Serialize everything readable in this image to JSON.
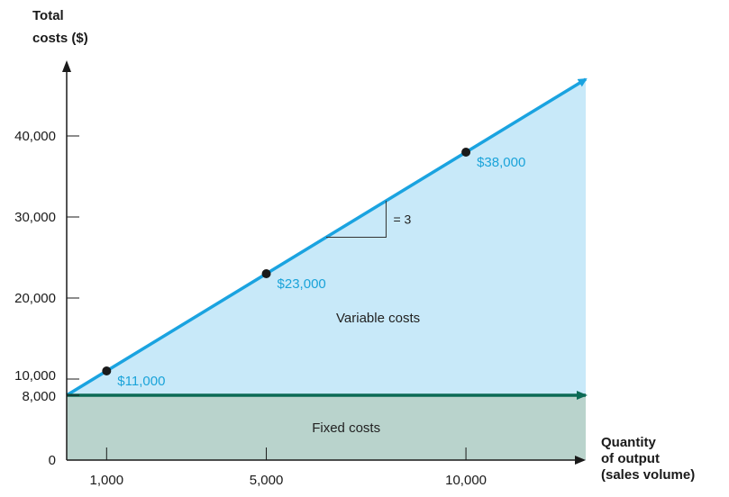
{
  "chart_data": {
    "type": "line",
    "ylabel_lines": [
      "Total",
      "costs ($)"
    ],
    "xlabel_lines": [
      "Quantity",
      "of output",
      "(sales volume)"
    ],
    "y_ticks": [
      {
        "value": 0,
        "label": "0"
      },
      {
        "value": 8000,
        "label": "8,000"
      },
      {
        "value": 10000,
        "label": "10,000"
      },
      {
        "value": 20000,
        "label": "20,000"
      },
      {
        "value": 30000,
        "label": "30,000"
      },
      {
        "value": 40000,
        "label": "40,000"
      }
    ],
    "x_ticks": [
      {
        "value": 1000,
        "label": "1,000"
      },
      {
        "value": 5000,
        "label": "5,000"
      },
      {
        "value": 10000,
        "label": "10,000"
      }
    ],
    "xlim": [
      0,
      13000
    ],
    "ylim": [
      0,
      47000
    ],
    "fixed_cost": 8000,
    "variable_cost_per_unit": 3,
    "total_cost_line": {
      "x": [
        0,
        13000
      ],
      "y": [
        8000,
        47000
      ]
    },
    "points": [
      {
        "x": 1000,
        "y": 11000,
        "label": "$11,000"
      },
      {
        "x": 5000,
        "y": 23000,
        "label": "$23,000"
      },
      {
        "x": 10000,
        "y": 38000,
        "label": "$38,000"
      }
    ],
    "slope_label": "= 3",
    "regions": {
      "variable": "Variable costs",
      "fixed": "Fixed costs"
    },
    "colors": {
      "total_line": "#1aa3e0",
      "variable_fill": "#c8e9f9",
      "fixed_fill": "#b9d3cc",
      "fixed_line": "#0c6a55",
      "point": "#1a1a1a",
      "axis": "#1a1a1a",
      "point_label": "#1aa3d9"
    }
  }
}
